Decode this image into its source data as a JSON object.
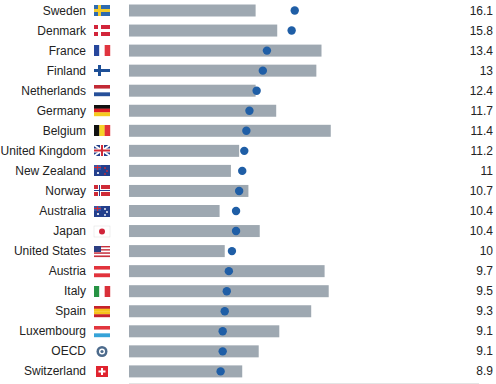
{
  "chart_data": {
    "type": "bar",
    "orientation": "horizontal",
    "tick_labels": false,
    "categories": [
      "Sweden",
      "Denmark",
      "France",
      "Finland",
      "Netherlands",
      "Germany",
      "Belgium",
      "United Kingdom",
      "New Zealand",
      "Norway",
      "Australia",
      "Japan",
      "United States",
      "Austria",
      "Italy",
      "Spain",
      "Luxembourg",
      "OECD",
      "Switzerland"
    ],
    "xlim": [
      0,
      34
    ],
    "series": [
      {
        "type": "bar",
        "color": "#9ea8b1",
        "values": [
          12.3,
          14.4,
          18.7,
          18.2,
          12.3,
          14.3,
          19.6,
          10.7,
          9.9,
          11.6,
          8.8,
          12.7,
          9.3,
          19.0,
          19.4,
          17.7,
          14.6,
          12.6,
          11.0
        ]
      },
      {
        "type": "scatter",
        "marker": "circle",
        "color": "#1f5ea6",
        "data_labels": true,
        "values": [
          16.1,
          15.8,
          13.4,
          13,
          12.4,
          11.7,
          11.4,
          11.2,
          11,
          10.7,
          10.4,
          10.4,
          10,
          9.7,
          9.5,
          9.3,
          9.1,
          9.1,
          8.9
        ]
      }
    ]
  }
}
